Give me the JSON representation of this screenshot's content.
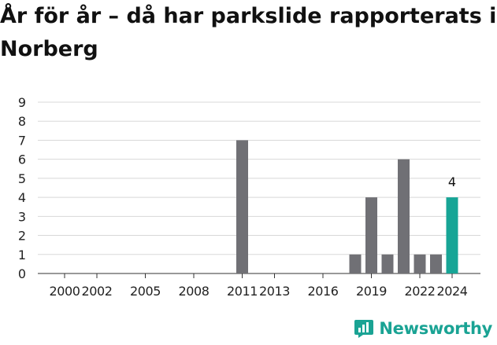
{
  "header": {
    "title": "År för år – då har parkslide rapporterats i Norberg"
  },
  "brand": {
    "name": "Newsworthy",
    "color": "#1aa394",
    "icon": "newsworthy-logo-icon"
  },
  "colors": {
    "bar": "#707075",
    "highlight": "#17a596",
    "grid": "#d8d8d8",
    "axis_text": "#222222"
  },
  "chart_data": {
    "type": "bar",
    "title": "År för år – då har parkslide rapporterats i Norberg",
    "xlabel": "",
    "ylabel": "",
    "ylim": [
      0,
      9
    ],
    "yticks": [
      "0",
      "1",
      "2",
      "3",
      "4",
      "5",
      "6",
      "7",
      "8",
      "9"
    ],
    "xticks": [
      "2000",
      "2002",
      "2005",
      "2008",
      "2011",
      "2013",
      "2016",
      "2019",
      "2022",
      "2024"
    ],
    "grid": true,
    "categories": [
      "2000",
      "2001",
      "2002",
      "2003",
      "2004",
      "2005",
      "2006",
      "2007",
      "2008",
      "2009",
      "2010",
      "2011",
      "2012",
      "2013",
      "2014",
      "2015",
      "2016",
      "2017",
      "2018",
      "2019",
      "2020",
      "2021",
      "2022",
      "2023",
      "2024"
    ],
    "values": [
      0,
      0,
      0,
      0,
      0,
      0,
      0,
      0,
      0,
      0,
      0,
      7,
      0,
      0,
      0,
      0,
      0,
      0,
      1,
      4,
      1,
      6,
      1,
      1,
      4
    ],
    "highlight": {
      "category": "2024",
      "label": "4"
    }
  }
}
